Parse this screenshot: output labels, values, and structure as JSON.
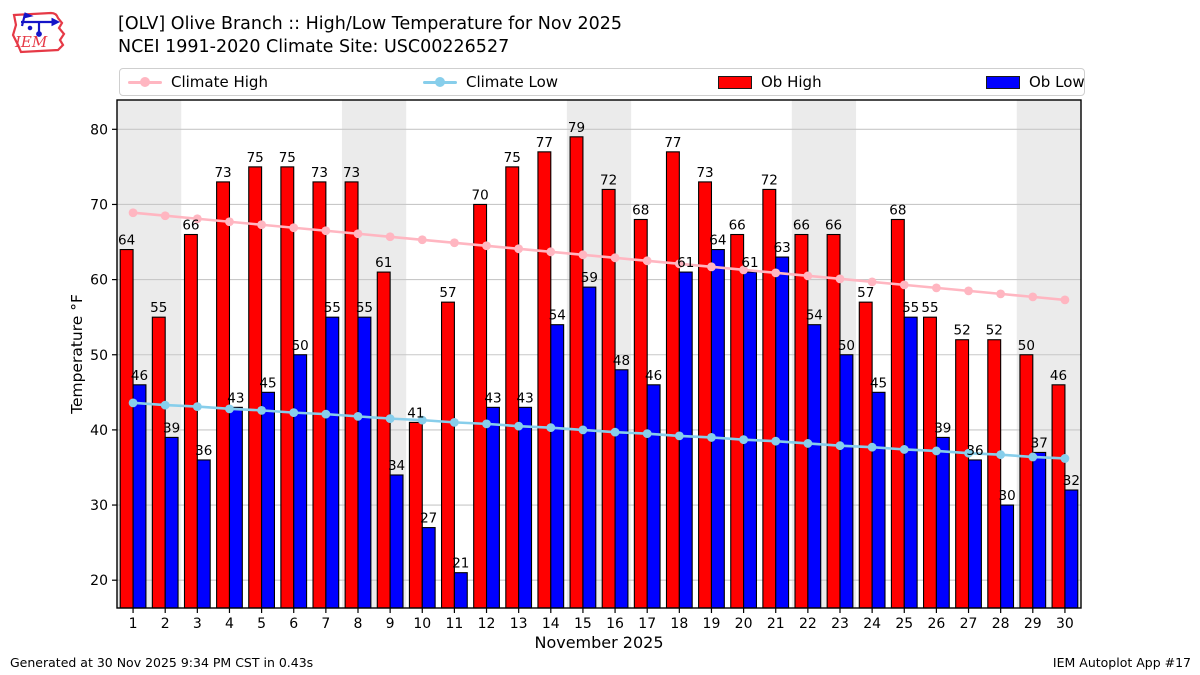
{
  "header": {
    "title": "[OLV] Olive Branch :: High/Low Temperature for Nov 2025",
    "subtitle": "NCEI 1991-2020 Climate Site: USC00226527",
    "logo_text": "IEM"
  },
  "legend": {
    "items": [
      {
        "label": "Climate High",
        "type": "line",
        "color": "#ffb6c1"
      },
      {
        "label": "Climate Low",
        "type": "line",
        "color": "#87ceeb"
      },
      {
        "label": "Ob High",
        "type": "patch",
        "color": "#ff0000"
      },
      {
        "label": "Ob Low",
        "type": "patch",
        "color": "#0000ff"
      }
    ]
  },
  "footer": {
    "left": "Generated at 30 Nov 2025 9:34 PM CST in 0.43s",
    "right": "IEM Autoplot App #17"
  },
  "chart_data": {
    "type": "bar",
    "title": "[OLV] Olive Branch :: High/Low Temperature for Nov 2025",
    "subtitle": "NCEI 1991-2020 Climate Site: USC00226527",
    "xlabel": "November 2025",
    "ylabel": "Temperature °F",
    "days": [
      1,
      2,
      3,
      4,
      5,
      6,
      7,
      8,
      9,
      10,
      11,
      12,
      13,
      14,
      15,
      16,
      17,
      18,
      19,
      20,
      21,
      22,
      23,
      24,
      25,
      26,
      27,
      28,
      29,
      30
    ],
    "yticks": [
      20,
      30,
      40,
      50,
      60,
      70,
      80
    ],
    "ylim": [
      16.3,
      83.9
    ],
    "xlim": [
      0.5,
      30.5
    ],
    "grid": "horizontal-only",
    "legend_position": "top",
    "weekend_bands": [
      [
        0.5,
        2.5
      ],
      [
        7.5,
        9.5
      ],
      [
        14.5,
        16.5
      ],
      [
        21.5,
        23.5
      ],
      [
        28.5,
        30.5
      ]
    ],
    "band_color": "#ebebeb",
    "grid_color": "#c8c8c8",
    "series": {
      "ob_high": {
        "name": "Ob High",
        "type": "bar",
        "color": "#ff0000",
        "edge_color": "#000000",
        "values": [
          64,
          55,
          66,
          73,
          75,
          75,
          73,
          73,
          61,
          41,
          57,
          70,
          75,
          77,
          79,
          72,
          68,
          77,
          73,
          66,
          72,
          66,
          66,
          57,
          68,
          55,
          52,
          52,
          50,
          46
        ]
      },
      "ob_low": {
        "name": "Ob Low",
        "type": "bar",
        "color": "#0000ff",
        "edge_color": "#000000",
        "values": [
          46,
          39,
          36,
          43,
          45,
          50,
          55,
          55,
          34,
          27,
          21,
          43,
          43,
          54,
          59,
          48,
          46,
          61,
          64,
          61,
          63,
          54,
          50,
          45,
          55,
          39,
          36,
          30,
          37,
          32
        ]
      },
      "climate_high": {
        "name": "Climate High",
        "type": "line",
        "color": "#ffb6c1",
        "values": [
          68.9,
          68.5,
          68.1,
          67.7,
          67.3,
          66.9,
          66.5,
          66.1,
          65.7,
          65.3,
          64.9,
          64.5,
          64.1,
          63.7,
          63.3,
          62.9,
          62.5,
          62.1,
          61.7,
          61.3,
          60.9,
          60.5,
          60.1,
          59.7,
          59.3,
          58.9,
          58.5,
          58.1,
          57.7,
          57.3
        ]
      },
      "climate_low": {
        "name": "Climate Low",
        "type": "line",
        "color": "#87ceeb",
        "values": [
          43.6,
          43.3,
          43.1,
          42.8,
          42.6,
          42.3,
          42.1,
          41.8,
          41.5,
          41.3,
          41.0,
          40.8,
          40.5,
          40.3,
          40.0,
          39.7,
          39.5,
          39.2,
          39.0,
          38.7,
          38.5,
          38.2,
          37.9,
          37.7,
          37.4,
          37.2,
          36.9,
          36.7,
          36.4,
          36.2
        ]
      }
    }
  }
}
